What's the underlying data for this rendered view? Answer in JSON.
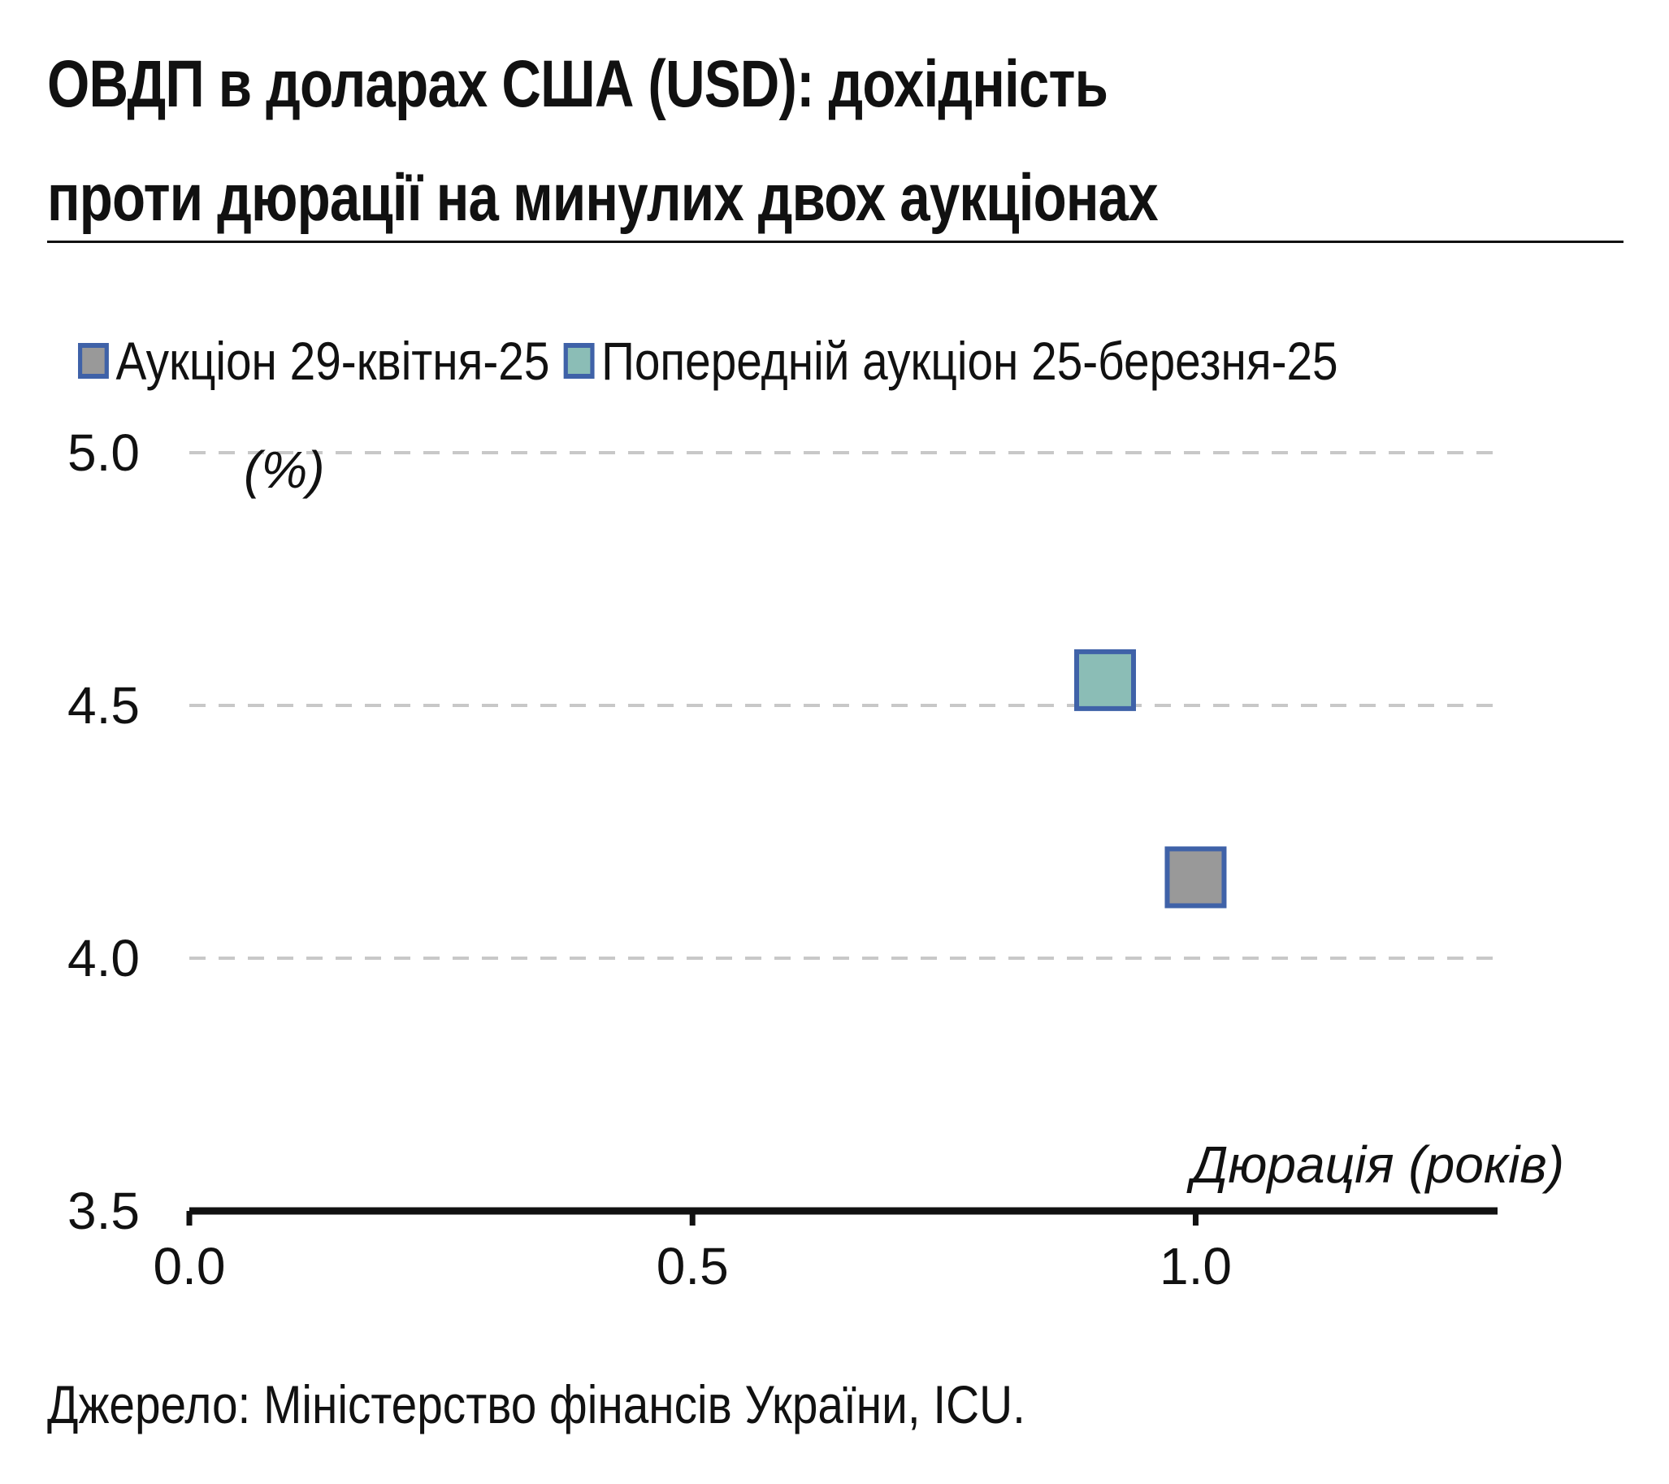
{
  "header": {
    "title_line1": "ОВДП в доларах США (USD): дохідність",
    "title_line2": "проти дюрації на минулих двох аукціонах"
  },
  "footer": {
    "source": "Джерело: Міністерство фінансів України, ICU."
  },
  "chart_data": {
    "type": "scatter",
    "title": "ОВДП в доларах США (USD): дохідність проти дюрації на минулих двох аукціонах",
    "xlabel": "Дюрація (років)",
    "ylabel": "(%)",
    "xlim": [
      0.0,
      1.3
    ],
    "ylim": [
      3.5,
      5.0
    ],
    "x_ticks": [
      "0.0",
      "0.5",
      "1.0"
    ],
    "y_ticks": [
      "5.0",
      "4.5",
      "4.0",
      "3.5"
    ],
    "grid": "horizontal-dashed",
    "legend_position": "top",
    "series": [
      {
        "name": "Аукціон 29-квітня-25",
        "fill": "#999999",
        "stroke": "#3f62a8",
        "points": [
          {
            "x": 1.0,
            "y": 4.16
          }
        ]
      },
      {
        "name": "Попередній аукціон 25-березня-25",
        "fill": "#8bbdb6",
        "stroke": "#3f62a8",
        "points": [
          {
            "x": 0.91,
            "y": 4.55
          }
        ]
      }
    ]
  }
}
